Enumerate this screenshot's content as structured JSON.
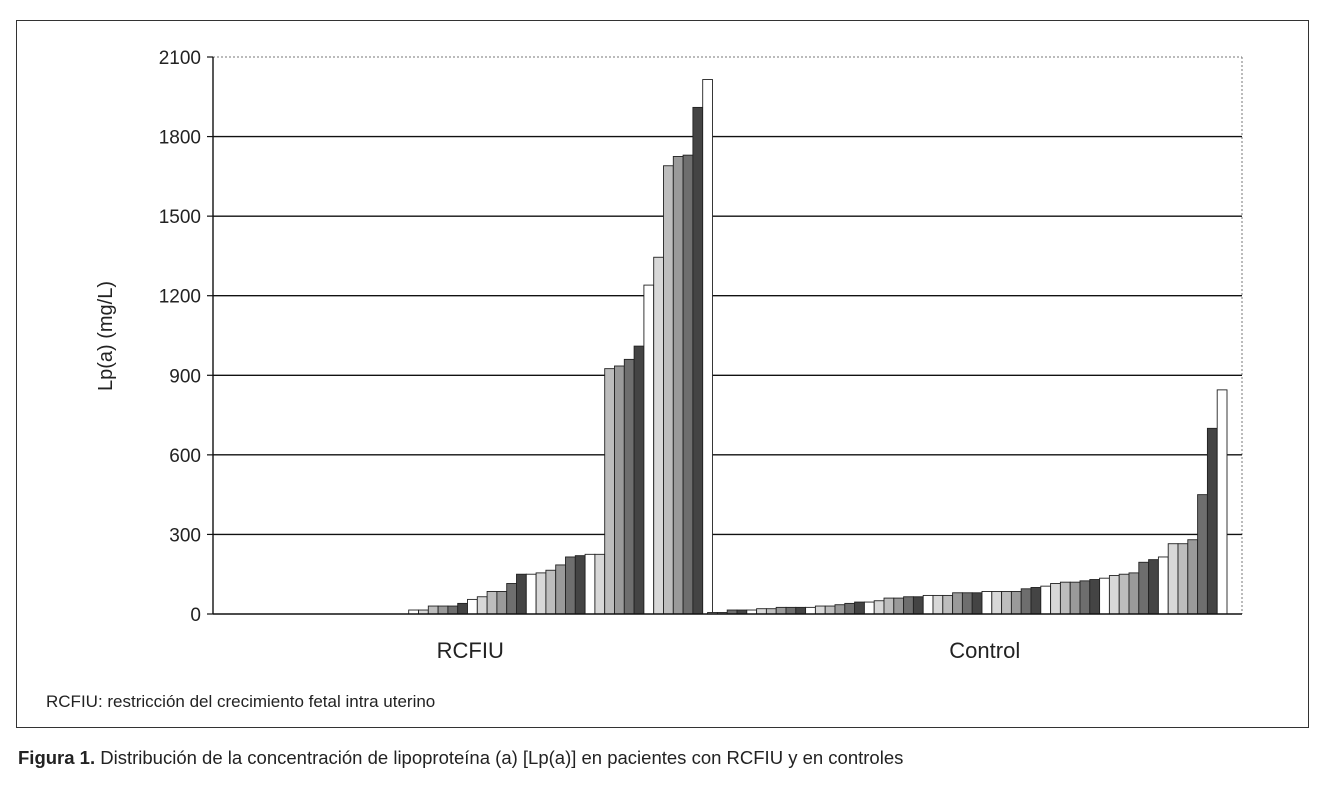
{
  "chart_data": {
    "type": "bar",
    "ylabel": "Lp(a)  (mg/L)",
    "ylim": [
      0,
      2100
    ],
    "yticks": [
      0,
      300,
      600,
      900,
      1200,
      1500,
      1800,
      2100
    ],
    "grid": true,
    "categories": [
      "RCFIU",
      "Control"
    ],
    "groups": [
      {
        "label": "RCFIU",
        "values": [
          15,
          15,
          30,
          30,
          30,
          40,
          55,
          65,
          85,
          85,
          115,
          150,
          150,
          155,
          165,
          185,
          215,
          220,
          225,
          225,
          925,
          935,
          960,
          1010,
          1240,
          1345,
          1690,
          1725,
          1730,
          1910,
          2015
        ]
      },
      {
        "label": "Control",
        "values": [
          5,
          5,
          15,
          15,
          15,
          20,
          20,
          25,
          25,
          25,
          25,
          30,
          30,
          35,
          40,
          45,
          45,
          50,
          60,
          60,
          65,
          65,
          70,
          70,
          70,
          80,
          80,
          80,
          85,
          85,
          85,
          85,
          95,
          100,
          105,
          115,
          120,
          120,
          125,
          130,
          135,
          145,
          150,
          155,
          195,
          205,
          215,
          265,
          265,
          280,
          450,
          700,
          845
        ]
      }
    ]
  },
  "note": "RCFIU: restricción del crecimiento fetal intra uterino",
  "caption": {
    "label": "Figura 1.",
    "text": " Distribución de la concentración de  lipoproteína (a) [Lp(a)] en pacientes con RCFIU y en controles"
  },
  "colors": {
    "fills": [
      "#ffffff",
      "#d8d8d8",
      "#bdbdbd",
      "#9a9a9a",
      "#6e6e6e",
      "#444444"
    ]
  }
}
